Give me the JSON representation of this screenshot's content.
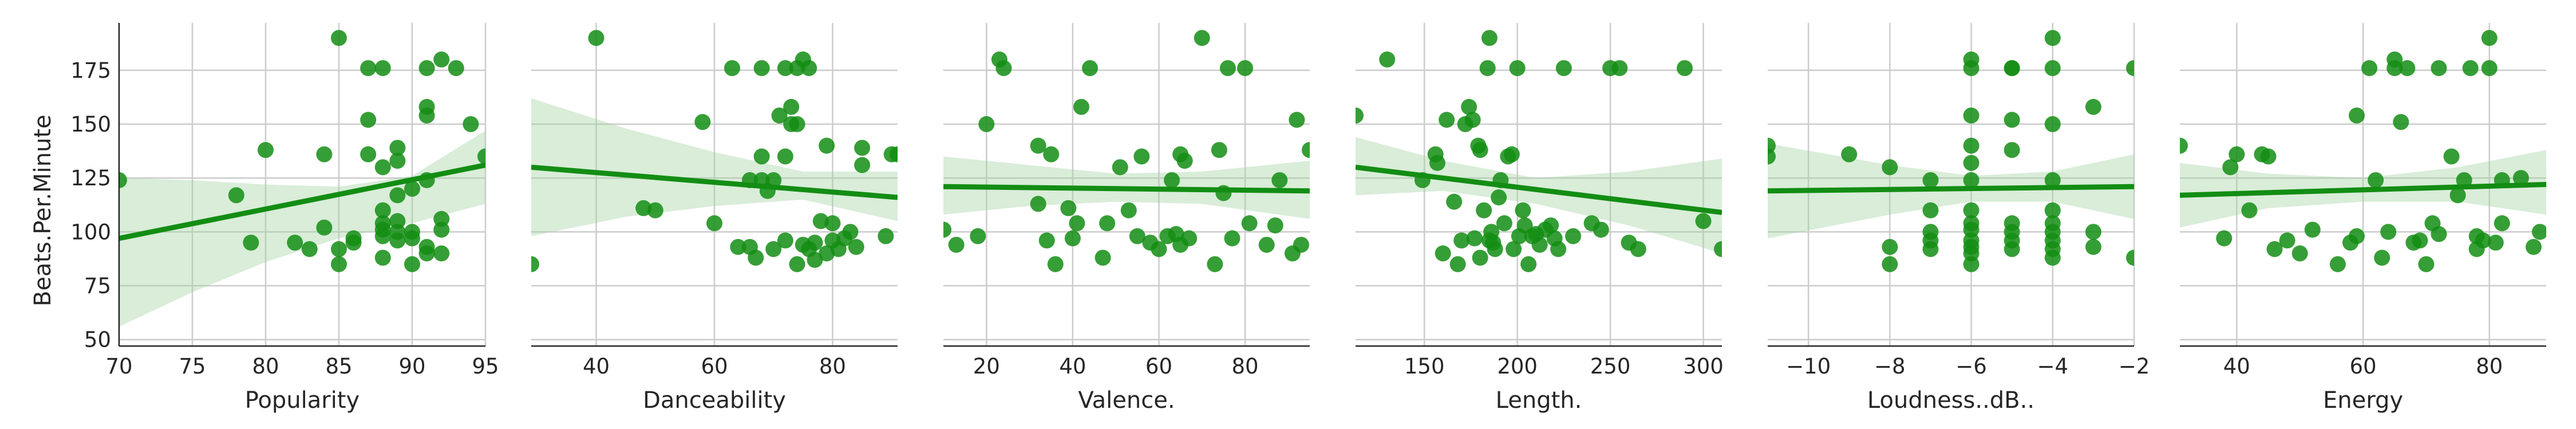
{
  "figure": {
    "ylabel": "Beats.Per.Minute",
    "yticks": [
      50,
      75,
      100,
      125,
      150,
      175
    ],
    "ylim": [
      47,
      197
    ],
    "point_color": "#138d13",
    "band_color": "#9fd39f"
  },
  "chart_data": [
    {
      "type": "scatter",
      "xlabel": "Popularity",
      "xlim": [
        70,
        95
      ],
      "xticks": [
        70,
        75,
        80,
        85,
        90,
        95
      ],
      "x": [
        70,
        78,
        79,
        80,
        82,
        83,
        84,
        84,
        85,
        85,
        85,
        86,
        86,
        87,
        87,
        87,
        88,
        88,
        88,
        88,
        88,
        88,
        88,
        89,
        89,
        89,
        89,
        89,
        89,
        90,
        90,
        90,
        90,
        91,
        91,
        91,
        91,
        91,
        91,
        92,
        92,
        92,
        92,
        93,
        94,
        95
      ],
      "y": [
        124,
        117,
        95,
        138,
        95,
        92,
        136,
        102,
        190,
        92,
        85,
        95,
        97,
        176,
        152,
        136,
        110,
        104,
        101,
        98,
        88,
        176,
        130,
        139,
        133,
        96,
        105,
        100,
        117,
        120,
        97,
        85,
        100,
        158,
        154,
        124,
        93,
        90,
        176,
        180,
        106,
        101,
        90,
        176,
        150,
        135
      ],
      "fit": [
        [
          70,
          97
        ],
        [
          95,
          131
        ]
      ],
      "ci": [
        [
          70,
          56,
          125
        ],
        [
          75,
          72,
          124
        ],
        [
          80,
          86,
          122
        ],
        [
          85,
          97,
          121
        ],
        [
          90,
          104,
          126
        ],
        [
          95,
          113,
          147
        ]
      ]
    },
    {
      "type": "scatter",
      "xlabel": "Danceability",
      "xlim": [
        29,
        91
      ],
      "xticks": [
        40,
        60,
        80
      ],
      "x": [
        29,
        40,
        48,
        50,
        58,
        60,
        63,
        64,
        66,
        66,
        67,
        68,
        68,
        68,
        69,
        70,
        70,
        71,
        72,
        72,
        72,
        73,
        73,
        74,
        74,
        74,
        75,
        75,
        76,
        76,
        77,
        77,
        78,
        79,
        79,
        80,
        80,
        81,
        82,
        83,
        84,
        85,
        85,
        89,
        90,
        91
      ],
      "y": [
        85,
        190,
        111,
        110,
        151,
        104,
        176,
        93,
        124,
        93,
        88,
        176,
        135,
        124,
        119,
        124,
        92,
        154,
        96,
        176,
        135,
        158,
        150,
        85,
        150,
        176,
        94,
        180,
        176,
        92,
        87,
        95,
        105,
        140,
        90,
        104,
        96,
        92,
        97,
        100,
        93,
        131,
        139,
        98,
        136,
        136
      ],
      "fit": [
        [
          29,
          130
        ],
        [
          91,
          116
        ]
      ],
      "ci": [
        [
          29,
          98,
          162
        ],
        [
          45,
          107,
          148
        ],
        [
          60,
          112,
          137
        ],
        [
          75,
          115,
          128
        ],
        [
          91,
          105,
          128
        ]
      ]
    },
    {
      "type": "scatter",
      "xlabel": "Valence.",
      "xlim": [
        10,
        95
      ],
      "xticks": [
        20,
        40,
        60,
        80
      ],
      "x": [
        10,
        13,
        18,
        20,
        23,
        24,
        32,
        32,
        34,
        35,
        36,
        39,
        40,
        41,
        42,
        44,
        47,
        48,
        51,
        53,
        55,
        56,
        58,
        60,
        62,
        63,
        64,
        65,
        65,
        66,
        67,
        70,
        73,
        74,
        75,
        76,
        77,
        80,
        81,
        85,
        87,
        88,
        91,
        92,
        93,
        95
      ],
      "y": [
        101,
        94,
        98,
        150,
        180,
        176,
        140,
        113,
        96,
        136,
        85,
        111,
        97,
        104,
        158,
        176,
        88,
        104,
        130,
        110,
        98,
        135,
        95,
        92,
        98,
        124,
        99,
        136,
        94,
        133,
        97,
        190,
        85,
        138,
        118,
        176,
        97,
        176,
        104,
        94,
        103,
        124,
        90,
        152,
        94,
        138
      ],
      "fit": [
        [
          10,
          121
        ],
        [
          95,
          119
        ]
      ],
      "ci": [
        [
          10,
          108,
          135
        ],
        [
          30,
          112,
          131
        ],
        [
          50,
          114,
          127
        ],
        [
          70,
          113,
          128
        ],
        [
          95,
          106,
          133
        ]
      ]
    },
    {
      "type": "scatter",
      "xlabel": "Length.",
      "xlim": [
        113,
        310
      ],
      "xticks": [
        150,
        200,
        250,
        300
      ],
      "x": [
        113,
        130,
        149,
        156,
        157,
        160,
        162,
        166,
        168,
        170,
        172,
        174,
        176,
        177,
        179,
        180,
        180,
        182,
        184,
        185,
        185,
        186,
        187,
        188,
        190,
        191,
        193,
        195,
        197,
        198,
        200,
        201,
        203,
        204,
        206,
        208,
        210,
        212,
        215,
        218,
        220,
        222,
        225,
        230,
        240,
        245,
        250,
        255,
        260,
        265,
        290,
        300,
        310
      ],
      "y": [
        154,
        180,
        124,
        136,
        132,
        90,
        152,
        114,
        85,
        96,
        150,
        158,
        152,
        97,
        140,
        138,
        88,
        110,
        176,
        96,
        190,
        100,
        95,
        92,
        116,
        124,
        104,
        135,
        136,
        92,
        176,
        98,
        110,
        103,
        85,
        98,
        99,
        94,
        101,
        103,
        97,
        92,
        176,
        98,
        104,
        101,
        176,
        176,
        95,
        92,
        176,
        105,
        92
      ],
      "fit": [
        [
          113,
          130
        ],
        [
          310,
          109
        ]
      ],
      "ci": [
        [
          113,
          117,
          144
        ],
        [
          160,
          119,
          133
        ],
        [
          210,
          113,
          125
        ],
        [
          260,
          103,
          128
        ],
        [
          310,
          90,
          134
        ]
      ]
    },
    {
      "type": "scatter",
      "xlabel": "Loudness..dB..",
      "xlim": [
        -11,
        -2
      ],
      "xticks": [
        -10,
        -8,
        -6,
        -4,
        -2
      ],
      "x": [
        -11,
        -11,
        -9,
        -8,
        -8,
        -8,
        -7,
        -7,
        -7,
        -7,
        -7,
        -6,
        -6,
        -6,
        -6,
        -6,
        -6,
        -6,
        -6,
        -6,
        -6,
        -6,
        -6,
        -6,
        -5,
        -5,
        -5,
        -5,
        -5,
        -5,
        -5,
        -5,
        -4,
        -4,
        -4,
        -4,
        -4,
        -4,
        -4,
        -4,
        -4,
        -4,
        -3,
        -3,
        -3,
        -2,
        -2
      ],
      "y": [
        140,
        135,
        136,
        130,
        93,
        85,
        124,
        110,
        100,
        96,
        92,
        180,
        176,
        154,
        132,
        124,
        110,
        101,
        96,
        93,
        90,
        85,
        104,
        140,
        176,
        176,
        152,
        138,
        104,
        100,
        96,
        92,
        190,
        176,
        150,
        124,
        110,
        104,
        100,
        96,
        92,
        88,
        158,
        100,
        93,
        176,
        88
      ],
      "fit": [
        [
          -11,
          119
        ],
        [
          -2,
          121
        ]
      ],
      "ci": [
        [
          -11,
          97,
          141
        ],
        [
          -8,
          108,
          131
        ],
        [
          -6,
          114,
          126
        ],
        [
          -4,
          114,
          128
        ],
        [
          -2,
          106,
          136
        ]
      ]
    },
    {
      "type": "scatter",
      "xlabel": "Energy",
      "xlim": [
        31,
        89
      ],
      "xticks": [
        40,
        60,
        80
      ],
      "x": [
        31,
        38,
        39,
        40,
        42,
        44,
        45,
        46,
        48,
        50,
        52,
        56,
        58,
        59,
        59,
        61,
        62,
        63,
        64,
        65,
        65,
        66,
        67,
        68,
        69,
        70,
        71,
        72,
        72,
        74,
        75,
        76,
        77,
        78,
        78,
        79,
        80,
        80,
        81,
        82,
        82,
        85,
        87,
        88
      ],
      "y": [
        140,
        97,
        130,
        136,
        110,
        136,
        135,
        92,
        96,
        90,
        101,
        85,
        95,
        98,
        154,
        176,
        124,
        88,
        100,
        176,
        180,
        151,
        176,
        95,
        96,
        85,
        104,
        176,
        99,
        135,
        117,
        124,
        176,
        92,
        98,
        96,
        176,
        190,
        95,
        104,
        124,
        125,
        93,
        100
      ],
      "fit": [
        [
          31,
          117
        ],
        [
          89,
          122
        ]
      ],
      "ci": [
        [
          31,
          102,
          132
        ],
        [
          45,
          111,
          127
        ],
        [
          60,
          114,
          125
        ],
        [
          75,
          114,
          130
        ],
        [
          89,
          108,
          138
        ]
      ]
    }
  ]
}
